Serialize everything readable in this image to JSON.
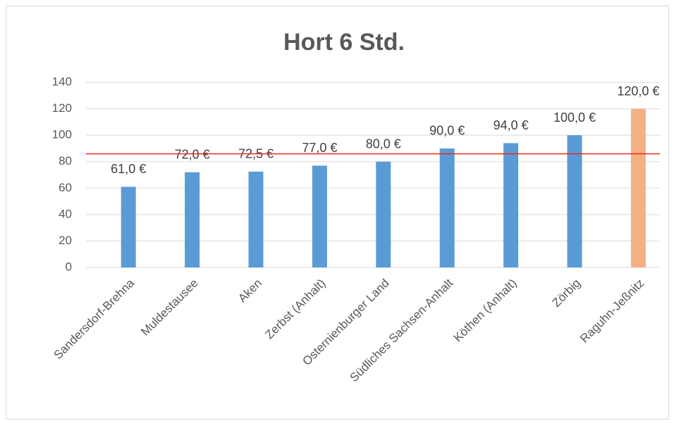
{
  "chart_data": {
    "type": "bar",
    "title": "Hort 6 Std.",
    "categories": [
      "Sandersdorf-Brehna",
      "Muldestausee",
      "Aken",
      "Zerbst (Anhalt)",
      "Osternienburger Land",
      "Südliches Sachsen-Anhalt",
      "Köthen (Anhalt)",
      "Zörbig",
      "Raguhn-Jeßnitz"
    ],
    "values": [
      61,
      72,
      72.5,
      77,
      80,
      90,
      94,
      100,
      120
    ],
    "value_labels": [
      "61,0 €",
      "72,0 €",
      "72,5 €",
      "77,0 €",
      "80,0 €",
      "90,0 €",
      "94,0 €",
      "100,0 €",
      "120,0 €"
    ],
    "colors": [
      "#5b9bd5",
      "#5b9bd5",
      "#5b9bd5",
      "#5b9bd5",
      "#5b9bd5",
      "#5b9bd5",
      "#5b9bd5",
      "#5b9bd5",
      "#f4b183"
    ],
    "ylim": [
      0,
      140
    ],
    "yticks": [
      0,
      20,
      40,
      60,
      80,
      100,
      120,
      140
    ],
    "grid": true,
    "reference_line": 86,
    "reference_color": "#e8291c"
  }
}
